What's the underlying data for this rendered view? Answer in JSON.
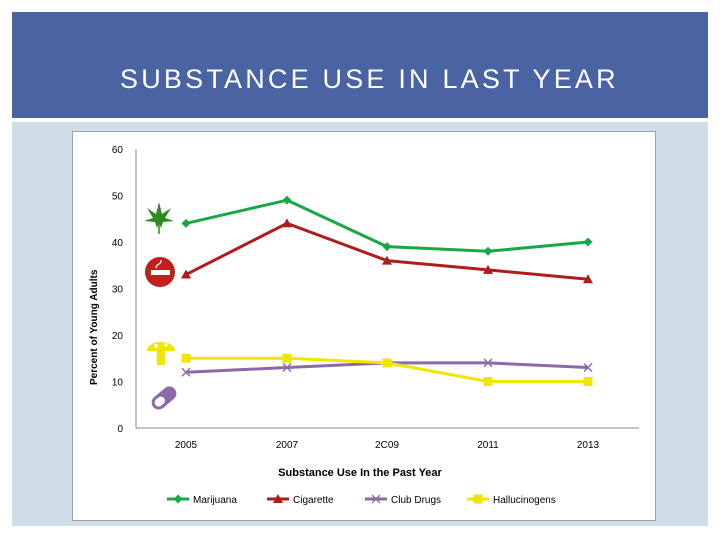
{
  "slide": {
    "title": "SUBSTANCE USE IN LAST YEAR"
  },
  "colors": {
    "banner": "#4a63a2",
    "panel": "#cfdde8",
    "marijuana": "#18a848",
    "cigarette": "#b01c1c",
    "club_drugs": "#8a6aa8",
    "hallucinogens": "#f2e600"
  },
  "icons": {
    "marijuana": "cannabis-leaf-icon",
    "cigarette": "no-smoking-icon",
    "hallucinogens": "mushroom-icon",
    "club_drugs": "pill-capsule-icon"
  },
  "chart_data": {
    "type": "line",
    "title": "",
    "xlabel": "Substance Use In the Past Year",
    "ylabel": "Percent of Young Adults",
    "categories": [
      "2005",
      "2007",
      "2C09",
      "2011",
      "2013"
    ],
    "yticks": [
      "0",
      "10",
      "20",
      "30",
      "40",
      "50",
      "60"
    ],
    "ylim": [
      0,
      60
    ],
    "grid": false,
    "legend_position": "bottom",
    "series": [
      {
        "name": "Marijuana",
        "values": [
          44,
          49,
          39,
          38,
          40
        ],
        "marker": "diamond",
        "color": "#18a848"
      },
      {
        "name": "Cigarette",
        "values": [
          33,
          44,
          36,
          34,
          32
        ],
        "marker": "triangle",
        "color": "#b01c1c"
      },
      {
        "name": "Club Drugs",
        "values": [
          12,
          13,
          14,
          14,
          13
        ],
        "marker": "x",
        "color": "#8a6aa8"
      },
      {
        "name": "Hallucinogens",
        "values": [
          15,
          15,
          14,
          10,
          10
        ],
        "marker": "square",
        "color": "#f2e600"
      }
    ]
  }
}
